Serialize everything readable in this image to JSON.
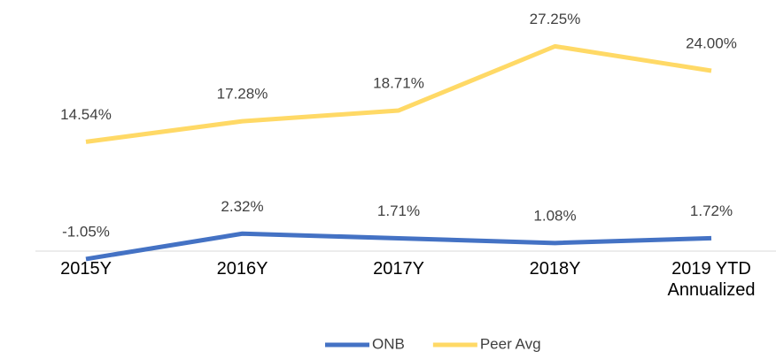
{
  "chart_data": {
    "type": "line",
    "categories": [
      "2015Y",
      "2016Y",
      "2017Y",
      "2018Y",
      "2019 YTD Annualized"
    ],
    "series": [
      {
        "name": "ONB",
        "color": "#4472c4",
        "values": [
          -1.05,
          2.32,
          1.71,
          1.08,
          1.72
        ],
        "value_labels": [
          "-1.05%",
          "2.32%",
          "1.71%",
          "1.08%",
          "1.72%"
        ]
      },
      {
        "name": "Peer Avg",
        "color": "#ffd966",
        "values": [
          14.54,
          17.28,
          18.71,
          27.25,
          24.0
        ],
        "value_labels": [
          "14.54%",
          "17.28%",
          "18.71%",
          "27.25%",
          "24.00%"
        ]
      }
    ],
    "ylim": [
      -2,
      30
    ],
    "legend": "bottom"
  }
}
